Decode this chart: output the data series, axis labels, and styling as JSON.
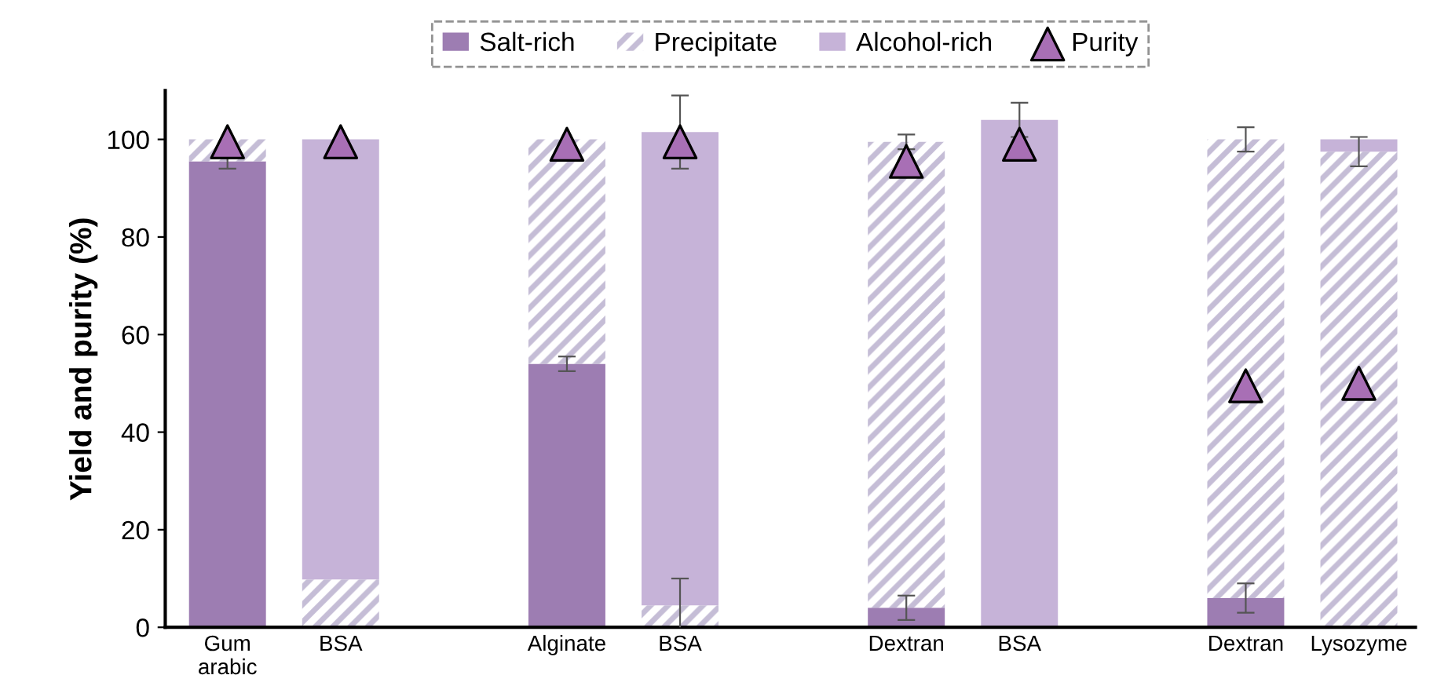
{
  "chart_data": {
    "type": "bar",
    "stacked": true,
    "ylabel": "Yield and purity (%)",
    "categories": [
      "Gum\narabic",
      "BSA",
      null,
      "Alginate",
      "BSA",
      null,
      "Dextran",
      "BSA",
      null,
      "Dextran",
      "Lysozyme"
    ],
    "ylim": [
      0,
      110
    ],
    "yticks": [
      0,
      20,
      40,
      60,
      80,
      100
    ],
    "grid": false,
    "legend": "top",
    "series": [
      {
        "name": "Salt-rich",
        "color": "#9d7db2",
        "values": [
          95.5,
          0,
          null,
          54,
          0,
          null,
          4,
          0,
          null,
          6,
          0
        ],
        "errors": [
          1.5,
          null,
          null,
          1.5,
          null,
          null,
          2.5,
          null,
          null,
          3,
          null
        ]
      },
      {
        "name": "Precipitate",
        "color": "#c5bdd6",
        "values": [
          4.5,
          9.8,
          null,
          46,
          4.5,
          null,
          95.5,
          0,
          null,
          94,
          97.5
        ],
        "errors": [
          null,
          null,
          null,
          null,
          5.5,
          null,
          1.5,
          null,
          null,
          2.5,
          3
        ]
      },
      {
        "name": "Alcohol-rich",
        "color": "#c6b3d8",
        "values": [
          0,
          90.2,
          null,
          0,
          97,
          null,
          0,
          104,
          null,
          0,
          2.5
        ],
        "errors": [
          null,
          null,
          null,
          null,
          7.5,
          null,
          null,
          3.5,
          null,
          null,
          null
        ]
      },
      {
        "name": "Purity",
        "type": "scatter",
        "marker": "triangle",
        "color": "#a86fb5",
        "values": [
          99.5,
          99.5,
          null,
          99,
          99.5,
          null,
          95.5,
          99,
          null,
          49.5,
          50
        ]
      }
    ]
  }
}
